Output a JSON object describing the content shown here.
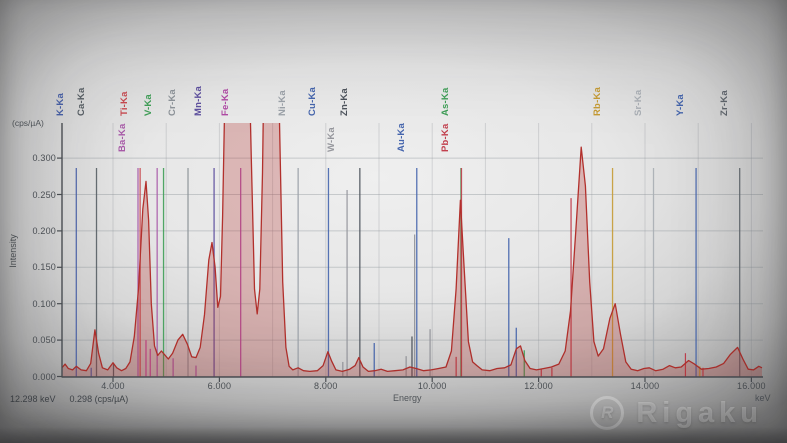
{
  "axis_labels": {
    "y_unit": "(cps/µA)",
    "y_title": "Intensity",
    "x_title": "Energy",
    "x_unit": "keV"
  },
  "cursor_readout": {
    "energy": "12.298 keV",
    "intensity": "0.298 (cps/µA)"
  },
  "watermark": {
    "logo_letter": "R",
    "brand": "Rigaku"
  },
  "chart_data": {
    "type": "line",
    "xlabel": "Energy",
    "x_unit": "keV",
    "ylabel": "Intensity",
    "y_unit": "cps/µA",
    "x_range": [
      3.04,
      16.2
    ],
    "y_range": [
      0,
      0.348
    ],
    "grid": "on",
    "legend": "none",
    "x_ticks": [
      {
        "value": 4,
        "label": "4.000"
      },
      {
        "value": 6,
        "label": "6.000"
      },
      {
        "value": 8,
        "label": "8.000"
      },
      {
        "value": 10,
        "label": "10.000"
      },
      {
        "value": 12,
        "label": "12.000"
      },
      {
        "value": 14,
        "label": "14.000"
      },
      {
        "value": 16,
        "label": "16.000"
      }
    ],
    "y_ticks": [
      {
        "value": 0.0,
        "label": "0.000"
      },
      {
        "value": 0.05,
        "label": "0.050"
      },
      {
        "value": 0.1,
        "label": "0.100"
      },
      {
        "value": 0.15,
        "label": "0.150"
      },
      {
        "value": 0.2,
        "label": "0.200"
      },
      {
        "value": 0.25,
        "label": "0.250"
      },
      {
        "value": 0.3,
        "label": "0.300"
      }
    ],
    "element_markers": [
      {
        "label": "K-Ka",
        "kev": 3.31,
        "color": "#4a63ab",
        "row": 1
      },
      {
        "label": "Ca-Ka",
        "kev": 3.69,
        "color": "#596066",
        "row": 1
      },
      {
        "label": "Ti-Ka",
        "kev": 4.51,
        "color": "#c84a50",
        "row": 1
      },
      {
        "label": "V-Ka",
        "kev": 4.95,
        "color": "#3f9e57",
        "row": 1
      },
      {
        "label": "Cr-Ka",
        "kev": 5.41,
        "color": "#8d9399",
        "row": 1
      },
      {
        "label": "Mn-Ka",
        "kev": 5.9,
        "color": "#5d4f9e",
        "row": 1
      },
      {
        "label": "Fe-Ka",
        "kev": 6.4,
        "color": "#b04aa5",
        "row": 1
      },
      {
        "label": "Ni-Ka",
        "kev": 7.48,
        "color": "#9ba1a8",
        "row": 1
      },
      {
        "label": "Cu-Ka",
        "kev": 8.05,
        "color": "#4565ad",
        "row": 1
      },
      {
        "label": "Zn-Ka",
        "kev": 8.64,
        "color": "#4d535c",
        "row": 1
      },
      {
        "label": "As-Ka",
        "kev": 10.54,
        "color": "#3f9e57",
        "row": 1
      },
      {
        "label": "Rb-Ka",
        "kev": 13.39,
        "color": "#c59b35",
        "row": 1
      },
      {
        "label": "Sr-Ka",
        "kev": 14.16,
        "color": "#a9aeb4",
        "row": 1
      },
      {
        "label": "Y-Ka",
        "kev": 14.96,
        "color": "#4565ad",
        "row": 1
      },
      {
        "label": "Zr-Ka",
        "kev": 15.78,
        "color": "#62686f",
        "row": 1
      },
      {
        "label": "Ba-Ka",
        "kev": 4.47,
        "color": "#a85aa8",
        "row": 2
      },
      {
        "label": "W-Ka",
        "kev": 8.4,
        "color": "#96979d",
        "row": 2,
        "line_top": 190
      },
      {
        "label": "Au-Ka",
        "kev": 9.71,
        "color": "#4565ad",
        "row": 2
      },
      {
        "label": "Pb-Ka",
        "kev": 10.55,
        "color": "#c2404e",
        "row": 2
      }
    ],
    "extra_marker_lines": [
      {
        "kev": 4.83,
        "color": "#a85aa8"
      }
    ],
    "emission_line_sticks": [
      {
        "kev": 3.59,
        "i": 0.012,
        "color": "#4a63ab"
      },
      {
        "kev": 4.01,
        "i": 0.018,
        "color": "#596066"
      },
      {
        "kev": 4.62,
        "i": 0.05,
        "color": "#c04a9e"
      },
      {
        "kev": 4.7,
        "i": 0.038,
        "color": "#c04a9e"
      },
      {
        "kev": 5.13,
        "i": 0.025,
        "color": "#a85aa8"
      },
      {
        "kev": 5.56,
        "i": 0.015,
        "color": "#a85aa8"
      },
      {
        "kev": 8.32,
        "i": 0.02,
        "color": "#96979d"
      },
      {
        "kev": 8.91,
        "i": 0.046,
        "color": "#4565ad"
      },
      {
        "kev": 9.51,
        "i": 0.028,
        "color": "#96979d"
      },
      {
        "kev": 9.62,
        "i": 0.055,
        "color": "#4d535c"
      },
      {
        "kev": 9.67,
        "i": 0.195,
        "color": "#96979d"
      },
      {
        "kev": 9.96,
        "i": 0.065,
        "color": "#96979d"
      },
      {
        "kev": 10.45,
        "i": 0.027,
        "color": "#c2404e"
      },
      {
        "kev": 11.44,
        "i": 0.19,
        "color": "#4565ad"
      },
      {
        "kev": 11.58,
        "i": 0.067,
        "color": "#4565ad"
      },
      {
        "kev": 11.73,
        "i": 0.036,
        "color": "#3f9e57"
      },
      {
        "kev": 12.05,
        "i": 0.01,
        "color": "#c2404e"
      },
      {
        "kev": 12.25,
        "i": 0.012,
        "color": "#c2404e"
      },
      {
        "kev": 12.61,
        "i": 0.245,
        "color": "#c2404e"
      },
      {
        "kev": 14.76,
        "i": 0.032,
        "color": "#c2404e"
      },
      {
        "kev": 15.03,
        "i": 0.014,
        "color": "#c59b35"
      },
      {
        "kev": 15.09,
        "i": 0.012,
        "color": "#c2404e"
      }
    ],
    "spectrum_points": [
      [
        3.04,
        0.012
      ],
      [
        3.1,
        0.017
      ],
      [
        3.16,
        0.011
      ],
      [
        3.24,
        0.009
      ],
      [
        3.31,
        0.014
      ],
      [
        3.4,
        0.009
      ],
      [
        3.5,
        0.008
      ],
      [
        3.58,
        0.018
      ],
      [
        3.66,
        0.064
      ],
      [
        3.73,
        0.032
      ],
      [
        3.8,
        0.012
      ],
      [
        3.9,
        0.009
      ],
      [
        4.0,
        0.019
      ],
      [
        4.07,
        0.012
      ],
      [
        4.16,
        0.008
      ],
      [
        4.24,
        0.011
      ],
      [
        4.32,
        0.02
      ],
      [
        4.4,
        0.055
      ],
      [
        4.48,
        0.12
      ],
      [
        4.56,
        0.23
      ],
      [
        4.62,
        0.268
      ],
      [
        4.67,
        0.215
      ],
      [
        4.72,
        0.1
      ],
      [
        4.78,
        0.042
      ],
      [
        4.84,
        0.029
      ],
      [
        4.91,
        0.035
      ],
      [
        4.97,
        0.03
      ],
      [
        5.04,
        0.024
      ],
      [
        5.12,
        0.032
      ],
      [
        5.22,
        0.05
      ],
      [
        5.31,
        0.058
      ],
      [
        5.4,
        0.044
      ],
      [
        5.48,
        0.027
      ],
      [
        5.56,
        0.026
      ],
      [
        5.64,
        0.04
      ],
      [
        5.72,
        0.085
      ],
      [
        5.8,
        0.16
      ],
      [
        5.86,
        0.184
      ],
      [
        5.92,
        0.15
      ],
      [
        5.97,
        0.095
      ],
      [
        6.02,
        0.11
      ],
      [
        6.06,
        0.22
      ],
      [
        6.11,
        0.42
      ],
      [
        6.18,
        0.65
      ],
      [
        6.4,
        0.7
      ],
      [
        6.52,
        0.55
      ],
      [
        6.6,
        0.3
      ],
      [
        6.66,
        0.12
      ],
      [
        6.71,
        0.086
      ],
      [
        6.76,
        0.12
      ],
      [
        6.81,
        0.28
      ],
      [
        6.86,
        0.55
      ],
      [
        6.95,
        0.68
      ],
      [
        7.05,
        0.6
      ],
      [
        7.13,
        0.35
      ],
      [
        7.19,
        0.13
      ],
      [
        7.25,
        0.04
      ],
      [
        7.31,
        0.014
      ],
      [
        7.38,
        0.009
      ],
      [
        7.48,
        0.012
      ],
      [
        7.58,
        0.008
      ],
      [
        7.7,
        0.007
      ],
      [
        7.84,
        0.008
      ],
      [
        7.95,
        0.015
      ],
      [
        8.04,
        0.034
      ],
      [
        8.11,
        0.021
      ],
      [
        8.19,
        0.009
      ],
      [
        8.31,
        0.007
      ],
      [
        8.45,
        0.01
      ],
      [
        8.55,
        0.015
      ],
      [
        8.62,
        0.026
      ],
      [
        8.7,
        0.013
      ],
      [
        8.8,
        0.007
      ],
      [
        8.92,
        0.008
      ],
      [
        9.04,
        0.01
      ],
      [
        9.16,
        0.007
      ],
      [
        9.3,
        0.008
      ],
      [
        9.45,
        0.009
      ],
      [
        9.58,
        0.013
      ],
      [
        9.7,
        0.011
      ],
      [
        9.84,
        0.008
      ],
      [
        9.98,
        0.009
      ],
      [
        10.12,
        0.011
      ],
      [
        10.26,
        0.013
      ],
      [
        10.36,
        0.035
      ],
      [
        10.45,
        0.12
      ],
      [
        10.53,
        0.242
      ],
      [
        10.6,
        0.15
      ],
      [
        10.68,
        0.048
      ],
      [
        10.76,
        0.02
      ],
      [
        10.84,
        0.015
      ],
      [
        10.94,
        0.009
      ],
      [
        11.08,
        0.008
      ],
      [
        11.22,
        0.011
      ],
      [
        11.36,
        0.012
      ],
      [
        11.48,
        0.016
      ],
      [
        11.58,
        0.038
      ],
      [
        11.66,
        0.042
      ],
      [
        11.74,
        0.022
      ],
      [
        11.84,
        0.011
      ],
      [
        11.96,
        0.009
      ],
      [
        12.1,
        0.011
      ],
      [
        12.24,
        0.013
      ],
      [
        12.38,
        0.017
      ],
      [
        12.5,
        0.035
      ],
      [
        12.6,
        0.09
      ],
      [
        12.7,
        0.2
      ],
      [
        12.8,
        0.315
      ],
      [
        12.88,
        0.262
      ],
      [
        12.96,
        0.13
      ],
      [
        13.04,
        0.048
      ],
      [
        13.12,
        0.028
      ],
      [
        13.22,
        0.038
      ],
      [
        13.34,
        0.08
      ],
      [
        13.44,
        0.1
      ],
      [
        13.54,
        0.058
      ],
      [
        13.64,
        0.02
      ],
      [
        13.74,
        0.01
      ],
      [
        13.86,
        0.008
      ],
      [
        13.98,
        0.011
      ],
      [
        14.08,
        0.012
      ],
      [
        14.2,
        0.008
      ],
      [
        14.34,
        0.01
      ],
      [
        14.46,
        0.015
      ],
      [
        14.57,
        0.012
      ],
      [
        14.68,
        0.013
      ],
      [
        14.82,
        0.022
      ],
      [
        14.93,
        0.017
      ],
      [
        15.06,
        0.01
      ],
      [
        15.2,
        0.011
      ],
      [
        15.34,
        0.013
      ],
      [
        15.48,
        0.018
      ],
      [
        15.6,
        0.03
      ],
      [
        15.74,
        0.04
      ],
      [
        15.84,
        0.024
      ],
      [
        15.94,
        0.01
      ],
      [
        16.04,
        0.009
      ],
      [
        16.14,
        0.014
      ],
      [
        16.2,
        0.012
      ]
    ]
  }
}
